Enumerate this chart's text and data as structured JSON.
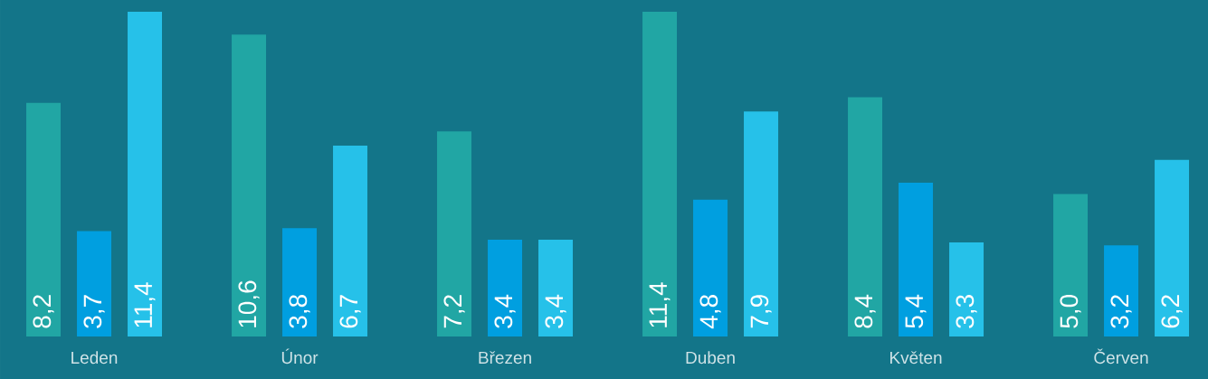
{
  "chart_data": {
    "type": "bar",
    "categories": [
      "Leden",
      "Únor",
      "Březen",
      "Duben",
      "Květen",
      "Červen"
    ],
    "ylim": [
      0,
      11.4
    ],
    "series": [
      {
        "color": "#21a6a4",
        "values": [
          8.2,
          10.6,
          7.2,
          11.4,
          8.4,
          5.0
        ],
        "value_labels": [
          "8,2",
          "10,6",
          "7,2",
          "11,4",
          "8,4",
          "5,0"
        ]
      },
      {
        "color": "#009fe0",
        "values": [
          3.7,
          3.8,
          3.4,
          4.8,
          5.4,
          3.2
        ],
        "value_labels": [
          "3,7",
          "3,8",
          "3,4",
          "4,8",
          "5,4",
          "3,2"
        ]
      },
      {
        "color": "#26c1e9",
        "values": [
          11.4,
          6.7,
          3.4,
          7.9,
          3.3,
          6.2
        ],
        "value_labels": [
          "11,4",
          "6,7",
          "3,4",
          "7,9",
          "3,3",
          "6,2"
        ]
      }
    ]
  }
}
